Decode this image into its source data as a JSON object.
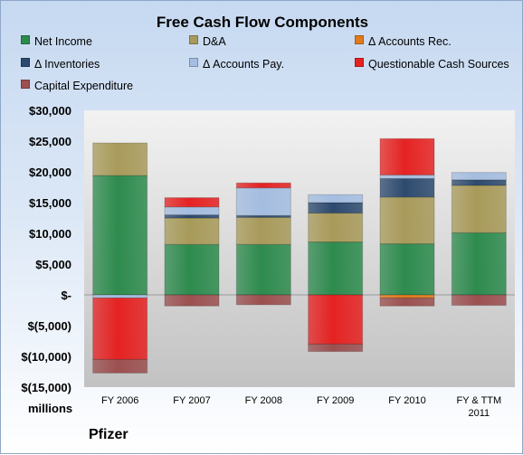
{
  "chart_data": {
    "type": "bar",
    "stacked": true,
    "title": "Free Cash Flow Components",
    "units_label": "millions",
    "company": "Pfizer",
    "ylim": [
      -15000,
      30000
    ],
    "yticks": [
      30000,
      25000,
      20000,
      15000,
      10000,
      5000,
      0,
      -5000,
      -10000,
      -15000
    ],
    "ytick_labels": [
      "$30,000",
      "$25,000",
      "$20,000",
      "$15,000",
      "$10,000",
      "$5,000",
      "$-",
      "$(5,000)",
      "$(10,000)",
      "$(15,000)"
    ],
    "grid": false,
    "legend_position": "top",
    "categories": [
      "FY 2006",
      "FY 2007",
      "FY 2008",
      "FY 2009",
      "FY 2010",
      "FY & TTM 2011"
    ],
    "series": [
      {
        "name": "Net Income",
        "color": "#2e8b4e",
        "values": [
          19400,
          8200,
          8200,
          8600,
          8300,
          10100
        ]
      },
      {
        "name": "D&A",
        "color": "#a89a5a",
        "values": [
          5300,
          4300,
          4400,
          4700,
          7600,
          7700
        ]
      },
      {
        "name": "Δ Accounts Rec.",
        "color": "#e07b1b",
        "values": [
          0,
          0,
          0,
          0,
          -500,
          0
        ]
      },
      {
        "name": "Δ Inventories",
        "color": "#2d4a6e",
        "values": [
          0,
          500,
          300,
          1700,
          3000,
          900
        ]
      },
      {
        "name": "Δ Accounts Pay.",
        "color": "#a4bde0",
        "values": [
          -500,
          1300,
          4500,
          1300,
          600,
          1200
        ]
      },
      {
        "name": "Questionable Cash Sources",
        "color": "#e52222",
        "values": [
          -10000,
          1500,
          800,
          -8000,
          5900,
          0
        ]
      },
      {
        "name": "Capital Expenditure",
        "color": "#9c5050",
        "values": [
          -2200,
          -1800,
          -1600,
          -1200,
          -1300,
          -1700
        ]
      }
    ]
  }
}
